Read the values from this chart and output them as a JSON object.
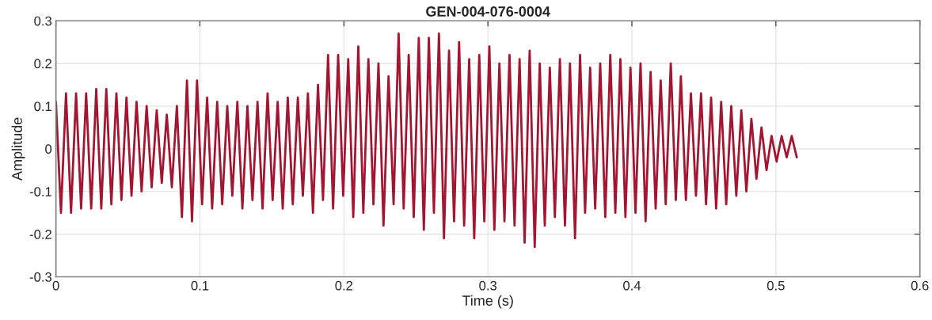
{
  "chart_data": {
    "type": "line",
    "title": "GEN-004-076-0004",
    "xlabel": "Time (s)",
    "ylabel": "Amplitude",
    "xlim": [
      0,
      0.6
    ],
    "xticks": [
      0,
      0.1,
      0.2,
      0.3,
      0.4,
      0.5,
      0.6
    ],
    "ylim": [
      -0.3,
      0.3
    ],
    "yticks": [
      -0.3,
      -0.2,
      -0.1,
      0,
      0.1,
      0.2,
      0.3
    ],
    "grid": true,
    "legend": false,
    "marker": "none",
    "line_style": "solid",
    "series": [
      {
        "color": "#a31530",
        "x": [
          0,
          0.0035,
          0.007,
          0.0105,
          0.014,
          0.0175,
          0.021,
          0.0245,
          0.028,
          0.0315,
          0.035,
          0.0385,
          0.042,
          0.0455,
          0.049,
          0.0525,
          0.056,
          0.0595,
          0.063,
          0.0665,
          0.07,
          0.0735,
          0.077,
          0.0805,
          0.084,
          0.0875,
          0.091,
          0.0945,
          0.098,
          0.1015,
          0.105,
          0.1085,
          0.112,
          0.1155,
          0.119,
          0.1225,
          0.126,
          0.1295,
          0.133,
          0.1365,
          0.14,
          0.1435,
          0.147,
          0.1505,
          0.154,
          0.1575,
          0.161,
          0.1645,
          0.168,
          0.1715,
          0.175,
          0.1785,
          0.182,
          0.1855,
          0.189,
          0.1925,
          0.196,
          0.1995,
          0.203,
          0.2065,
          0.21,
          0.2135,
          0.217,
          0.2205,
          0.224,
          0.2275,
          0.231,
          0.2345,
          0.238,
          0.2415,
          0.245,
          0.2485,
          0.252,
          0.2555,
          0.259,
          0.2625,
          0.266,
          0.2695,
          0.273,
          0.2765,
          0.28,
          0.2835,
          0.287,
          0.2905,
          0.294,
          0.2975,
          0.301,
          0.3045,
          0.308,
          0.3115,
          0.315,
          0.3185,
          0.322,
          0.3255,
          0.329,
          0.3325,
          0.336,
          0.3395,
          0.343,
          0.3465,
          0.35,
          0.3535,
          0.357,
          0.3605,
          0.364,
          0.3675,
          0.371,
          0.3745,
          0.378,
          0.3815,
          0.385,
          0.3885,
          0.392,
          0.3955,
          0.399,
          0.4025,
          0.406,
          0.4095,
          0.413,
          0.4165,
          0.42,
          0.4235,
          0.427,
          0.4305,
          0.434,
          0.4375,
          0.441,
          0.4445,
          0.448,
          0.4515,
          0.455,
          0.4585,
          0.462,
          0.4655,
          0.469,
          0.4725,
          0.476,
          0.4795,
          0.483,
          0.4865,
          0.49,
          0.4935,
          0.497,
          0.5005,
          0.504,
          0.5075,
          0.511,
          0.5145
        ],
        "values": [
          0.11,
          -0.15,
          0.13,
          -0.15,
          0.13,
          -0.14,
          0.13,
          -0.14,
          0.14,
          -0.14,
          0.14,
          -0.13,
          0.13,
          -0.12,
          0.12,
          -0.11,
          0.11,
          -0.1,
          0.1,
          -0.09,
          0.09,
          -0.08,
          0.08,
          -0.09,
          0.1,
          -0.16,
          0.16,
          -0.17,
          0.16,
          -0.13,
          0.12,
          -0.14,
          0.11,
          -0.13,
          0.1,
          -0.11,
          0.11,
          -0.14,
          0.1,
          -0.12,
          0.11,
          -0.14,
          0.13,
          -0.12,
          0.11,
          -0.14,
          0.12,
          -0.13,
          0.12,
          -0.11,
          0.13,
          -0.15,
          0.15,
          -0.12,
          0.22,
          -0.14,
          0.22,
          -0.11,
          0.21,
          -0.16,
          0.24,
          -0.15,
          0.21,
          -0.13,
          0.2,
          -0.18,
          0.17,
          -0.13,
          0.27,
          -0.14,
          0.22,
          -0.16,
          0.26,
          -0.19,
          0.26,
          -0.15,
          0.27,
          -0.21,
          0.23,
          -0.17,
          0.25,
          -0.18,
          0.21,
          -0.21,
          0.22,
          -0.17,
          0.24,
          -0.19,
          0.2,
          -0.17,
          0.22,
          -0.18,
          0.21,
          -0.22,
          0.23,
          -0.23,
          0.2,
          -0.18,
          0.19,
          -0.16,
          0.21,
          -0.18,
          0.2,
          -0.21,
          0.22,
          -0.15,
          0.19,
          -0.14,
          0.2,
          -0.16,
          0.22,
          -0.15,
          0.21,
          -0.16,
          0.19,
          -0.15,
          0.2,
          -0.17,
          0.18,
          -0.14,
          0.16,
          -0.13,
          0.2,
          -0.12,
          0.17,
          -0.12,
          0.13,
          -0.11,
          0.13,
          -0.13,
          0.12,
          -0.14,
          0.11,
          -0.13,
          0.1,
          -0.11,
          0.09,
          -0.1,
          0.07,
          -0.07,
          0.05,
          -0.05,
          0.03,
          -0.03,
          0.03,
          -0.02,
          0.03,
          -0.02
        ]
      }
    ]
  }
}
